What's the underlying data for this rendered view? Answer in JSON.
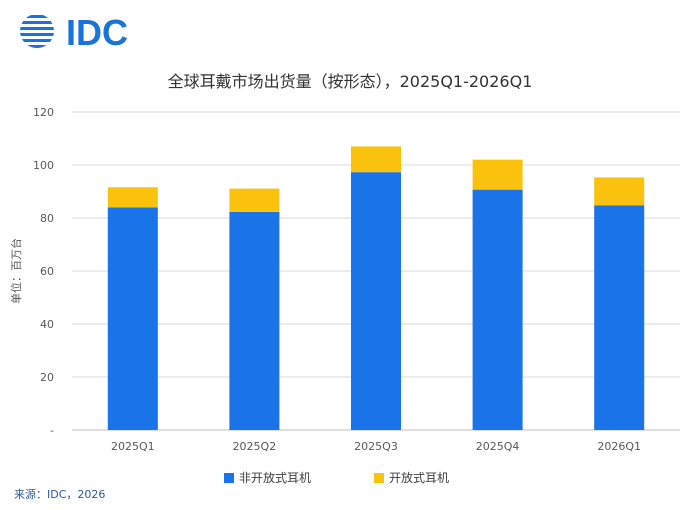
{
  "header": {
    "logo_text": "IDC",
    "brand_color": "#1a73d9"
  },
  "footer": {
    "source": "来源：IDC，2026"
  },
  "chart_data": {
    "type": "bar",
    "stacked": true,
    "title": "全球耳戴市场出货量（按形态），2025Q1-2026Q1",
    "xlabel": "",
    "ylabel": "单位：百万台",
    "categories": [
      "2025Q1",
      "2025Q2",
      "2025Q3",
      "2025Q4",
      "2026Q1"
    ],
    "series": [
      {
        "name": "非开放式耳机",
        "color": "#1a73e8",
        "values": [
          84,
          82.3,
          97.3,
          90.7,
          84.8
        ]
      },
      {
        "name": "开放式耳机",
        "color": "#fbc20d",
        "values": [
          7.6,
          8.8,
          9.7,
          11.3,
          10.5
        ]
      }
    ],
    "ylim": [
      0,
      120
    ],
    "yticks": [
      0,
      20,
      40,
      60,
      80,
      100,
      120
    ],
    "ytick_labels": [
      "-",
      "20",
      "40",
      "60",
      "80",
      "100",
      "120"
    ],
    "grid": true,
    "legend_position": "bottom"
  }
}
